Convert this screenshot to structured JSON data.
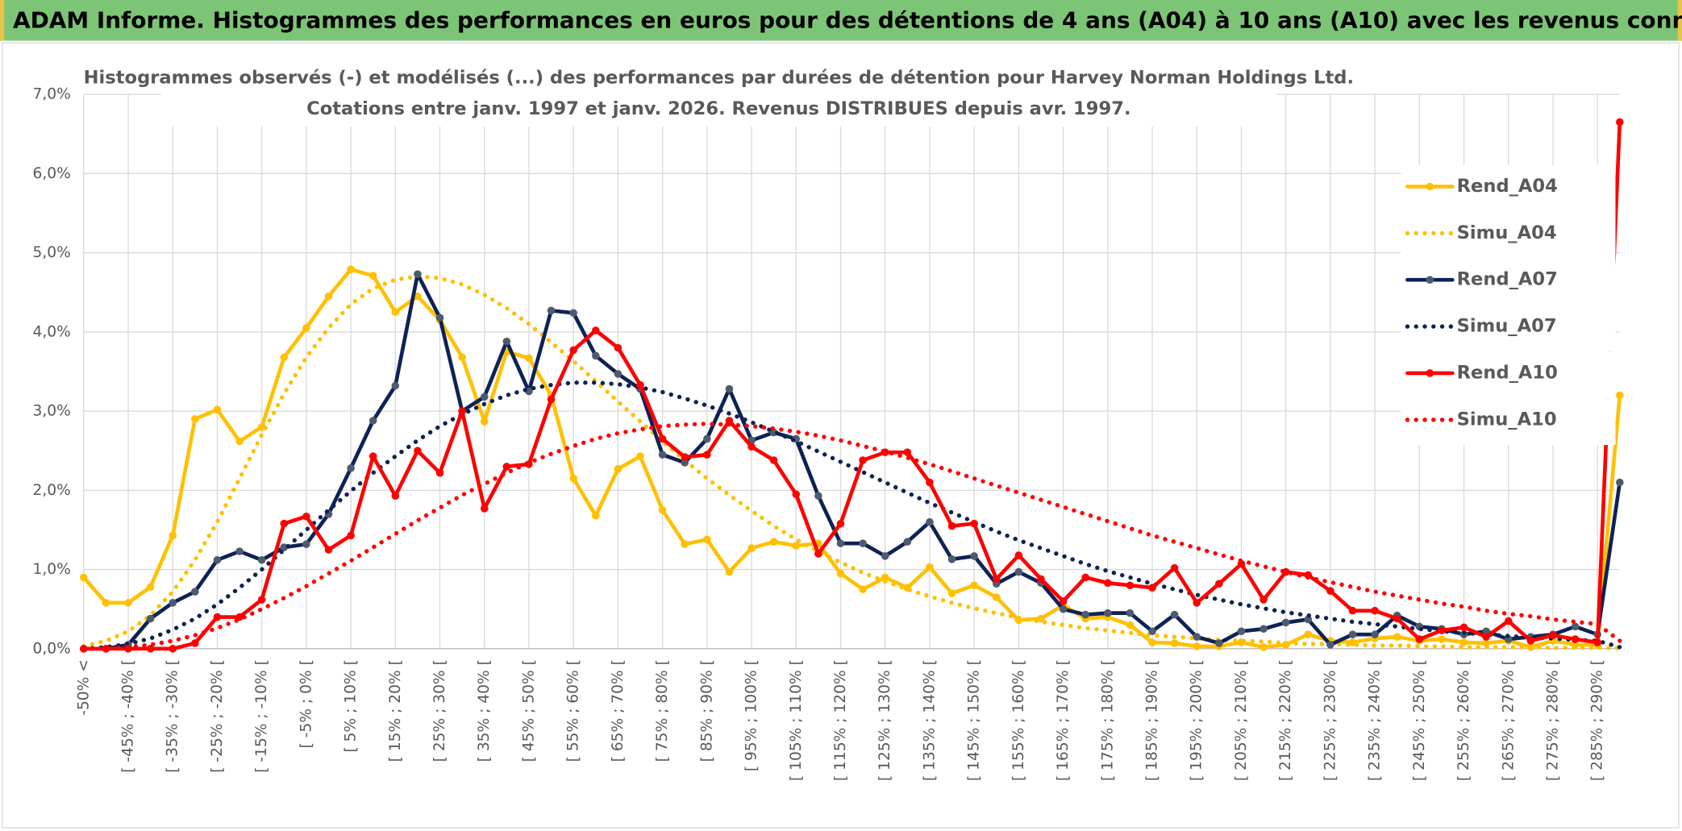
{
  "header": {
    "title": "ADAM Informe. Histogrammes des performances en euros pour des détentions de 4 ans (A04) à 10 ans (A10) avec les revenus connus distribués"
  },
  "chart_data": {
    "type": "line",
    "title": "Histogrammes observés (-) et modélisés (...) des performances par durées de détention pour Harvey Norman Holdings Ltd.",
    "subtitle": "Cotations entre janv. 1997 et janv. 2026. Revenus DISTRIBUES depuis avr. 1997.",
    "categories": [
      "-50% <",
      null,
      "[ -45% ; -40% [",
      null,
      "[ -35% ; -30% [",
      null,
      "[ -25% ; -20% [",
      null,
      "[ -15% ; -10% [",
      null,
      "[ -5% ; 0% [",
      null,
      "[ 5% ; 10% [",
      null,
      "[ 15% ; 20% [",
      null,
      "[ 25% ; 30% [",
      null,
      "[ 35% ; 40% [",
      null,
      "[ 45% ; 50% [",
      null,
      "[ 55% ; 60% [",
      null,
      "[ 65% ; 70% [",
      null,
      "[ 75% ; 80% [",
      null,
      "[ 85% ; 90% [",
      null,
      "[ 95% ; 100% [",
      null,
      "[ 105% ; 110% [",
      null,
      "[ 115% ; 120% [",
      null,
      "[ 125% ; 130% [",
      null,
      "[ 135% ; 140% [",
      null,
      "[ 145% ; 150% [",
      null,
      "[ 155% ; 160% [",
      null,
      "[ 165% ; 170% [",
      null,
      "[ 175% ; 180% [",
      null,
      "[ 185% ; 190% [",
      null,
      "[ 195% ; 200% [",
      null,
      "[ 205% ; 210% [",
      null,
      "[ 215% ; 220% [",
      null,
      "[ 225% ; 230% [",
      null,
      "[ 235% ; 240% [",
      null,
      "[ 245% ; 250% [",
      null,
      "[ 255% ; 260% [",
      null,
      "[ 265% ; 270% [",
      null,
      "[ 275% ; 280% [",
      null,
      "[ 285% ; 290% [",
      null
    ],
    "series": [
      {
        "name": "Rend_A04",
        "color": "#ffc000",
        "marker_color": "#ffc000",
        "style": "solid",
        "markers": true,
        "values": [
          0.9,
          0.58,
          0.58,
          0.78,
          1.43,
          2.9,
          3.02,
          2.62,
          2.8,
          3.68,
          4.05,
          4.45,
          4.79,
          4.71,
          4.25,
          4.45,
          4.15,
          3.68,
          2.87,
          3.75,
          3.67,
          3.2,
          2.15,
          1.68,
          2.27,
          2.43,
          1.75,
          1.32,
          1.38,
          0.97,
          1.27,
          1.35,
          1.3,
          1.33,
          0.95,
          0.75,
          0.9,
          0.77,
          1.03,
          0.7,
          0.8,
          0.65,
          0.36,
          0.38,
          0.55,
          0.38,
          0.4,
          0.3,
          0.08,
          0.07,
          0.03,
          0.03,
          0.08,
          0.02,
          0.05,
          0.18,
          0.1,
          0.08,
          0.13,
          0.15,
          0.1,
          0.12,
          0.08,
          0.07,
          0.1,
          0.02,
          0.1,
          0.05,
          0.05,
          3.2
        ]
      },
      {
        "name": "Simu_A04",
        "color": "#ffc000",
        "style": "dotted",
        "markers": false,
        "values": [
          0.03,
          0.1,
          0.22,
          0.42,
          0.72,
          1.12,
          1.6,
          2.15,
          2.7,
          3.22,
          3.68,
          4.05,
          4.35,
          4.55,
          4.66,
          4.7,
          4.68,
          4.6,
          4.47,
          4.3,
          4.1,
          3.87,
          3.63,
          3.38,
          3.12,
          2.87,
          2.62,
          2.38,
          2.15,
          1.94,
          1.74,
          1.55,
          1.38,
          1.23,
          1.09,
          0.96,
          0.85,
          0.75,
          0.66,
          0.58,
          0.51,
          0.45,
          0.39,
          0.34,
          0.3,
          0.26,
          0.23,
          0.2,
          0.17,
          0.15,
          0.13,
          0.11,
          0.1,
          0.09,
          0.07,
          0.06,
          0.06,
          0.05,
          0.04,
          0.04,
          0.03,
          0.03,
          0.02,
          0.02,
          0.02,
          0.02,
          0.01,
          0.01,
          0.01,
          0.01
        ]
      },
      {
        "name": "Rend_A07",
        "color": "#0d2256",
        "marker_color": "#4e5b6e",
        "style": "solid",
        "markers": true,
        "values": [
          0,
          0,
          0.05,
          0.38,
          0.58,
          0.72,
          1.12,
          1.23,
          1.12,
          1.28,
          1.32,
          1.7,
          2.28,
          2.88,
          3.32,
          4.73,
          4.18,
          3.0,
          3.18,
          3.88,
          3.25,
          4.27,
          4.24,
          3.7,
          3.47,
          3.28,
          2.45,
          2.35,
          2.65,
          3.28,
          2.63,
          2.73,
          2.65,
          1.93,
          1.33,
          1.33,
          1.17,
          1.35,
          1.6,
          1.13,
          1.17,
          0.82,
          0.97,
          0.83,
          0.5,
          0.43,
          0.45,
          0.45,
          0.22,
          0.43,
          0.15,
          0.07,
          0.22,
          0.25,
          0.33,
          0.37,
          0.05,
          0.18,
          0.18,
          0.42,
          0.28,
          0.25,
          0.18,
          0.22,
          0.12,
          0.15,
          0.18,
          0.28,
          0.18,
          2.1
        ]
      },
      {
        "name": "Simu_A07",
        "color": "#0d2256",
        "style": "dotted",
        "markers": false,
        "values": [
          0,
          0.02,
          0.06,
          0.13,
          0.24,
          0.38,
          0.56,
          0.77,
          1.0,
          1.25,
          1.5,
          1.75,
          1.99,
          2.22,
          2.43,
          2.63,
          2.81,
          2.96,
          3.09,
          3.2,
          3.28,
          3.33,
          3.36,
          3.36,
          3.34,
          3.3,
          3.24,
          3.16,
          3.07,
          2.97,
          2.86,
          2.74,
          2.62,
          2.49,
          2.36,
          2.23,
          2.1,
          1.97,
          1.84,
          1.72,
          1.6,
          1.48,
          1.37,
          1.27,
          1.17,
          1.07,
          0.98,
          0.9,
          0.82,
          0.75,
          0.68,
          0.62,
          0.56,
          0.51,
          0.46,
          0.42,
          0.38,
          0.34,
          0.31,
          0.28,
          0.25,
          0.22,
          0.2,
          0.18,
          0.16,
          0.14,
          0.13,
          0.11,
          0.1,
          0.02
        ]
      },
      {
        "name": "Rend_A10",
        "color": "#ff0000",
        "marker_color": "#ff0000",
        "style": "solid",
        "markers": true,
        "values": [
          0,
          0,
          0,
          0,
          0,
          0.07,
          0.4,
          0.4,
          0.62,
          1.58,
          1.67,
          1.25,
          1.43,
          2.43,
          1.93,
          2.5,
          2.22,
          3.0,
          1.77,
          2.3,
          2.33,
          3.15,
          3.77,
          4.02,
          3.8,
          3.33,
          2.65,
          2.42,
          2.45,
          2.88,
          2.55,
          2.38,
          1.95,
          1.2,
          1.58,
          2.38,
          2.48,
          2.48,
          2.1,
          1.55,
          1.58,
          0.88,
          1.18,
          0.88,
          0.6,
          0.9,
          0.83,
          0.8,
          0.77,
          1.02,
          0.58,
          0.82,
          1.07,
          0.62,
          0.97,
          0.93,
          0.73,
          0.48,
          0.48,
          0.38,
          0.12,
          0.23,
          0.27,
          0.15,
          0.35,
          0.1,
          0.17,
          0.12,
          0.08,
          6.65
        ]
      },
      {
        "name": "Simu_A10",
        "color": "#ff0000",
        "style": "dotted",
        "markers": false,
        "values": [
          0,
          0,
          0.02,
          0.05,
          0.1,
          0.17,
          0.26,
          0.37,
          0.5,
          0.64,
          0.79,
          0.95,
          1.11,
          1.28,
          1.45,
          1.62,
          1.78,
          1.94,
          2.08,
          2.22,
          2.35,
          2.46,
          2.56,
          2.65,
          2.72,
          2.77,
          2.81,
          2.83,
          2.84,
          2.83,
          2.81,
          2.78,
          2.74,
          2.69,
          2.63,
          2.56,
          2.49,
          2.41,
          2.33,
          2.24,
          2.15,
          2.06,
          1.97,
          1.88,
          1.79,
          1.7,
          1.61,
          1.52,
          1.43,
          1.35,
          1.27,
          1.19,
          1.11,
          1.04,
          0.97,
          0.9,
          0.84,
          0.78,
          0.72,
          0.67,
          0.62,
          0.57,
          0.53,
          0.48,
          0.44,
          0.41,
          0.37,
          0.34,
          0.31,
          0.1
        ]
      }
    ],
    "ylim": [
      0,
      7
    ],
    "yticks": [
      {
        "value": 0,
        "label": "0,0%"
      },
      {
        "value": 1,
        "label": "1,0%"
      },
      {
        "value": 2,
        "label": "2,0%"
      },
      {
        "value": 3,
        "label": "3,0%"
      },
      {
        "value": 4,
        "label": "4,0%"
      },
      {
        "value": 5,
        "label": "5,0%"
      },
      {
        "value": 6,
        "label": "6,0%"
      },
      {
        "value": 7,
        "label": "7,0%"
      }
    ],
    "grid": true,
    "legend": "right"
  }
}
